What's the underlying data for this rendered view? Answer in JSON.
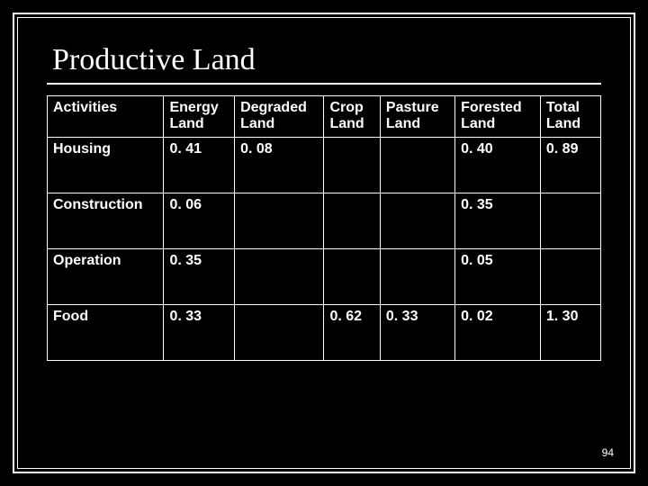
{
  "title": "Productive Land",
  "page_number": "94",
  "table": {
    "columns": [
      "Activities",
      "Energy Land",
      "Degraded Land",
      "Crop Land",
      "Pasture Land",
      "Forested Land",
      "Total Land"
    ],
    "rows": [
      {
        "activity": "Housing",
        "energy": "0. 41",
        "degraded": "0. 08",
        "crop": "",
        "pasture": "",
        "forested": "0. 40",
        "total": "0. 89"
      },
      {
        "activity": "Construction",
        "energy": "0. 06",
        "degraded": "",
        "crop": "",
        "pasture": "",
        "forested": "0. 35",
        "total": ""
      },
      {
        "activity": "Operation",
        "energy": "0. 35",
        "degraded": "",
        "crop": "",
        "pasture": "",
        "forested": "0. 05",
        "total": ""
      },
      {
        "activity": "Food",
        "energy": "0. 33",
        "degraded": "",
        "crop": "0. 62",
        "pasture": "0. 33",
        "forested": "0. 02",
        "total": "1. 30"
      }
    ]
  }
}
